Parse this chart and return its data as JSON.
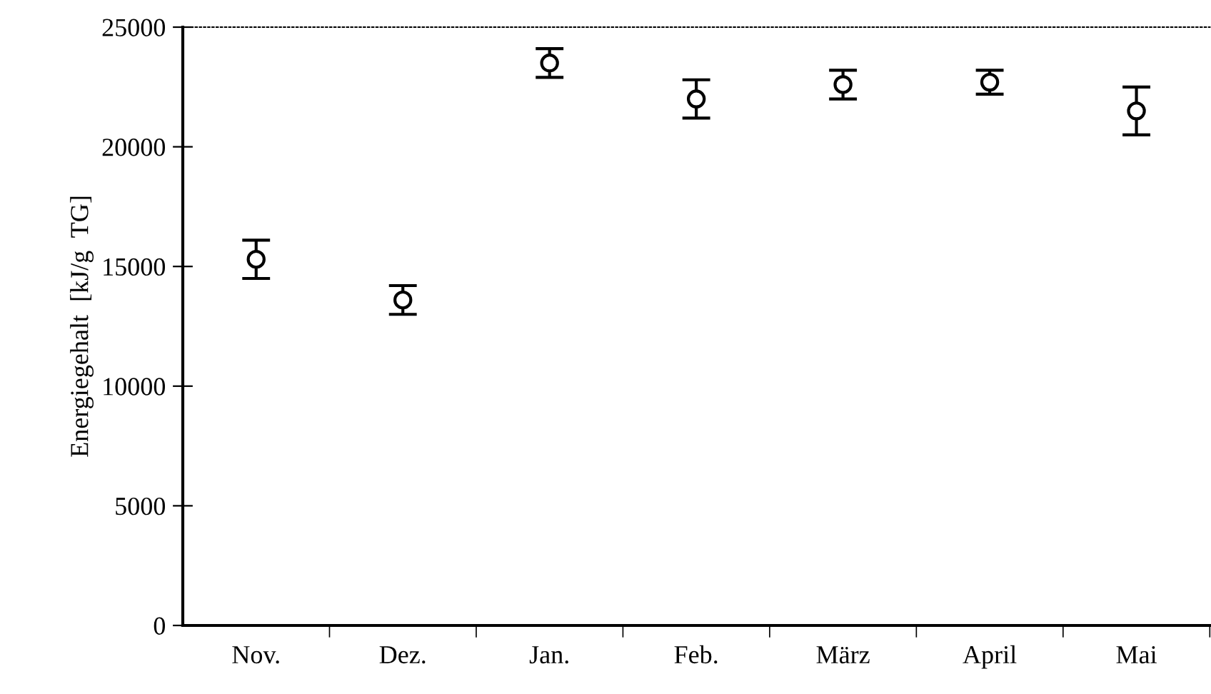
{
  "chart_data": {
    "type": "scatter",
    "ylabel": "Energiegehalt  [kJ/g  TG]",
    "categories": [
      "Nov.",
      "Dez.",
      "Jan.",
      "Feb.",
      "März",
      "April",
      "Mai"
    ],
    "values": [
      15300,
      13600,
      23500,
      22000,
      22600,
      22700,
      21500
    ],
    "errors": [
      800,
      600,
      600,
      800,
      600,
      500,
      1000
    ],
    "color": "#000000",
    "marker": "circle",
    "ylim": [
      0,
      25000
    ],
    "yticks": [
      0,
      5000,
      10000,
      15000,
      20000,
      25000
    ],
    "grid": false
  }
}
